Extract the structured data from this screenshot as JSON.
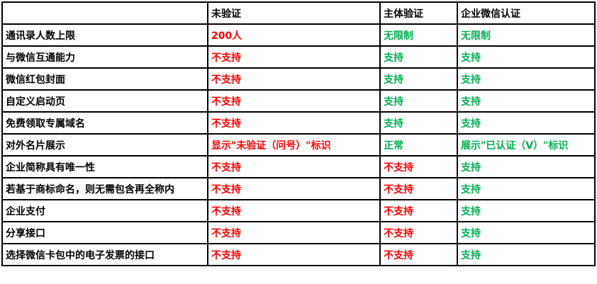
{
  "colors": {
    "unsupported": "#ff0000",
    "supported": "#00b050"
  },
  "header": [
    "",
    "未验证",
    "主体验证",
    "企业微信认证"
  ],
  "rows": [
    {
      "feature": "通讯录人数上限",
      "unverified": "200人",
      "entity": "无限制",
      "certified": "无限制"
    },
    {
      "feature": "与微信互通能力",
      "unverified": "不支持",
      "entity": "支持",
      "certified": "支持"
    },
    {
      "feature": "微信红包封面",
      "unverified": "不支持",
      "entity": "支持",
      "certified": "支持"
    },
    {
      "feature": "自定义启动页",
      "unverified": "不支持",
      "entity": "支持",
      "certified": "支持"
    },
    {
      "feature": "免费领取专属域名",
      "unverified": "不支持",
      "entity": "支持",
      "certified": "支持"
    },
    {
      "feature": "对外名片展示",
      "unverified": "显示\"未验证（问号）\"标识",
      "entity": "正常",
      "certified": "展示\"已认证（V）\"标识"
    },
    {
      "feature": "企业简称具有唯一性",
      "unverified": "不支持",
      "entity": "不支持",
      "certified": "支持"
    },
    {
      "feature": "若基于商标命名，则无需包含再全称内",
      "unverified": "不支持",
      "entity": "不支持",
      "certified": "支持"
    },
    {
      "feature": "企业支付",
      "unverified": "不支持",
      "entity": "不支持",
      "certified": "支持"
    },
    {
      "feature": "分享接口",
      "unverified": "不支持",
      "entity": "不支持",
      "certified": "支持"
    },
    {
      "feature": "选择微信卡包中的电子发票的接口",
      "unverified": "不支持",
      "entity": "不支持",
      "certified": "支持"
    }
  ]
}
